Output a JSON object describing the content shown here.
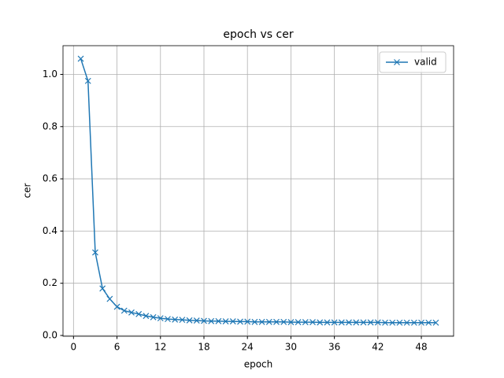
{
  "chart_data": {
    "type": "line",
    "title": "epoch vs cer",
    "x_label": "epoch",
    "y_label": "cer",
    "x": [
      1,
      2,
      3,
      4,
      5,
      6,
      7,
      8,
      9,
      10,
      11,
      12,
      13,
      14,
      15,
      16,
      17,
      18,
      19,
      20,
      21,
      22,
      23,
      24,
      25,
      26,
      27,
      28,
      29,
      30,
      31,
      32,
      33,
      34,
      35,
      36,
      37,
      38,
      39,
      40,
      41,
      42,
      43,
      44,
      45,
      46,
      47,
      48,
      49,
      50
    ],
    "series": [
      {
        "name": "valid",
        "color": "#1f77b4",
        "marker": "x",
        "values": [
          1.06,
          0.975,
          0.318,
          0.18,
          0.14,
          0.11,
          0.095,
          0.088,
          0.082,
          0.075,
          0.07,
          0.066,
          0.063,
          0.061,
          0.06,
          0.058,
          0.057,
          0.056,
          0.055,
          0.055,
          0.054,
          0.054,
          0.053,
          0.053,
          0.052,
          0.052,
          0.052,
          0.052,
          0.052,
          0.051,
          0.051,
          0.051,
          0.051,
          0.05,
          0.05,
          0.05,
          0.05,
          0.05,
          0.05,
          0.05,
          0.05,
          0.05,
          0.049,
          0.049,
          0.049,
          0.049,
          0.049,
          0.049,
          0.049,
          0.049
        ]
      }
    ],
    "xlim": [
      -1.45,
      52.45
    ],
    "ylim": [
      -0.003,
      1.11
    ],
    "xticks": [
      0,
      6,
      12,
      18,
      24,
      30,
      36,
      42,
      48
    ],
    "yticks": [
      {
        "value": 0,
        "label": "0.0"
      },
      {
        "value": 0.2,
        "label": "0.2"
      },
      {
        "value": 0.4,
        "label": "0.4"
      },
      {
        "value": 0.6,
        "label": "0.6"
      },
      {
        "value": 0.8,
        "label": "0.8"
      },
      {
        "value": 1,
        "label": "1.0"
      }
    ],
    "grid": true,
    "legend": "upper right"
  }
}
